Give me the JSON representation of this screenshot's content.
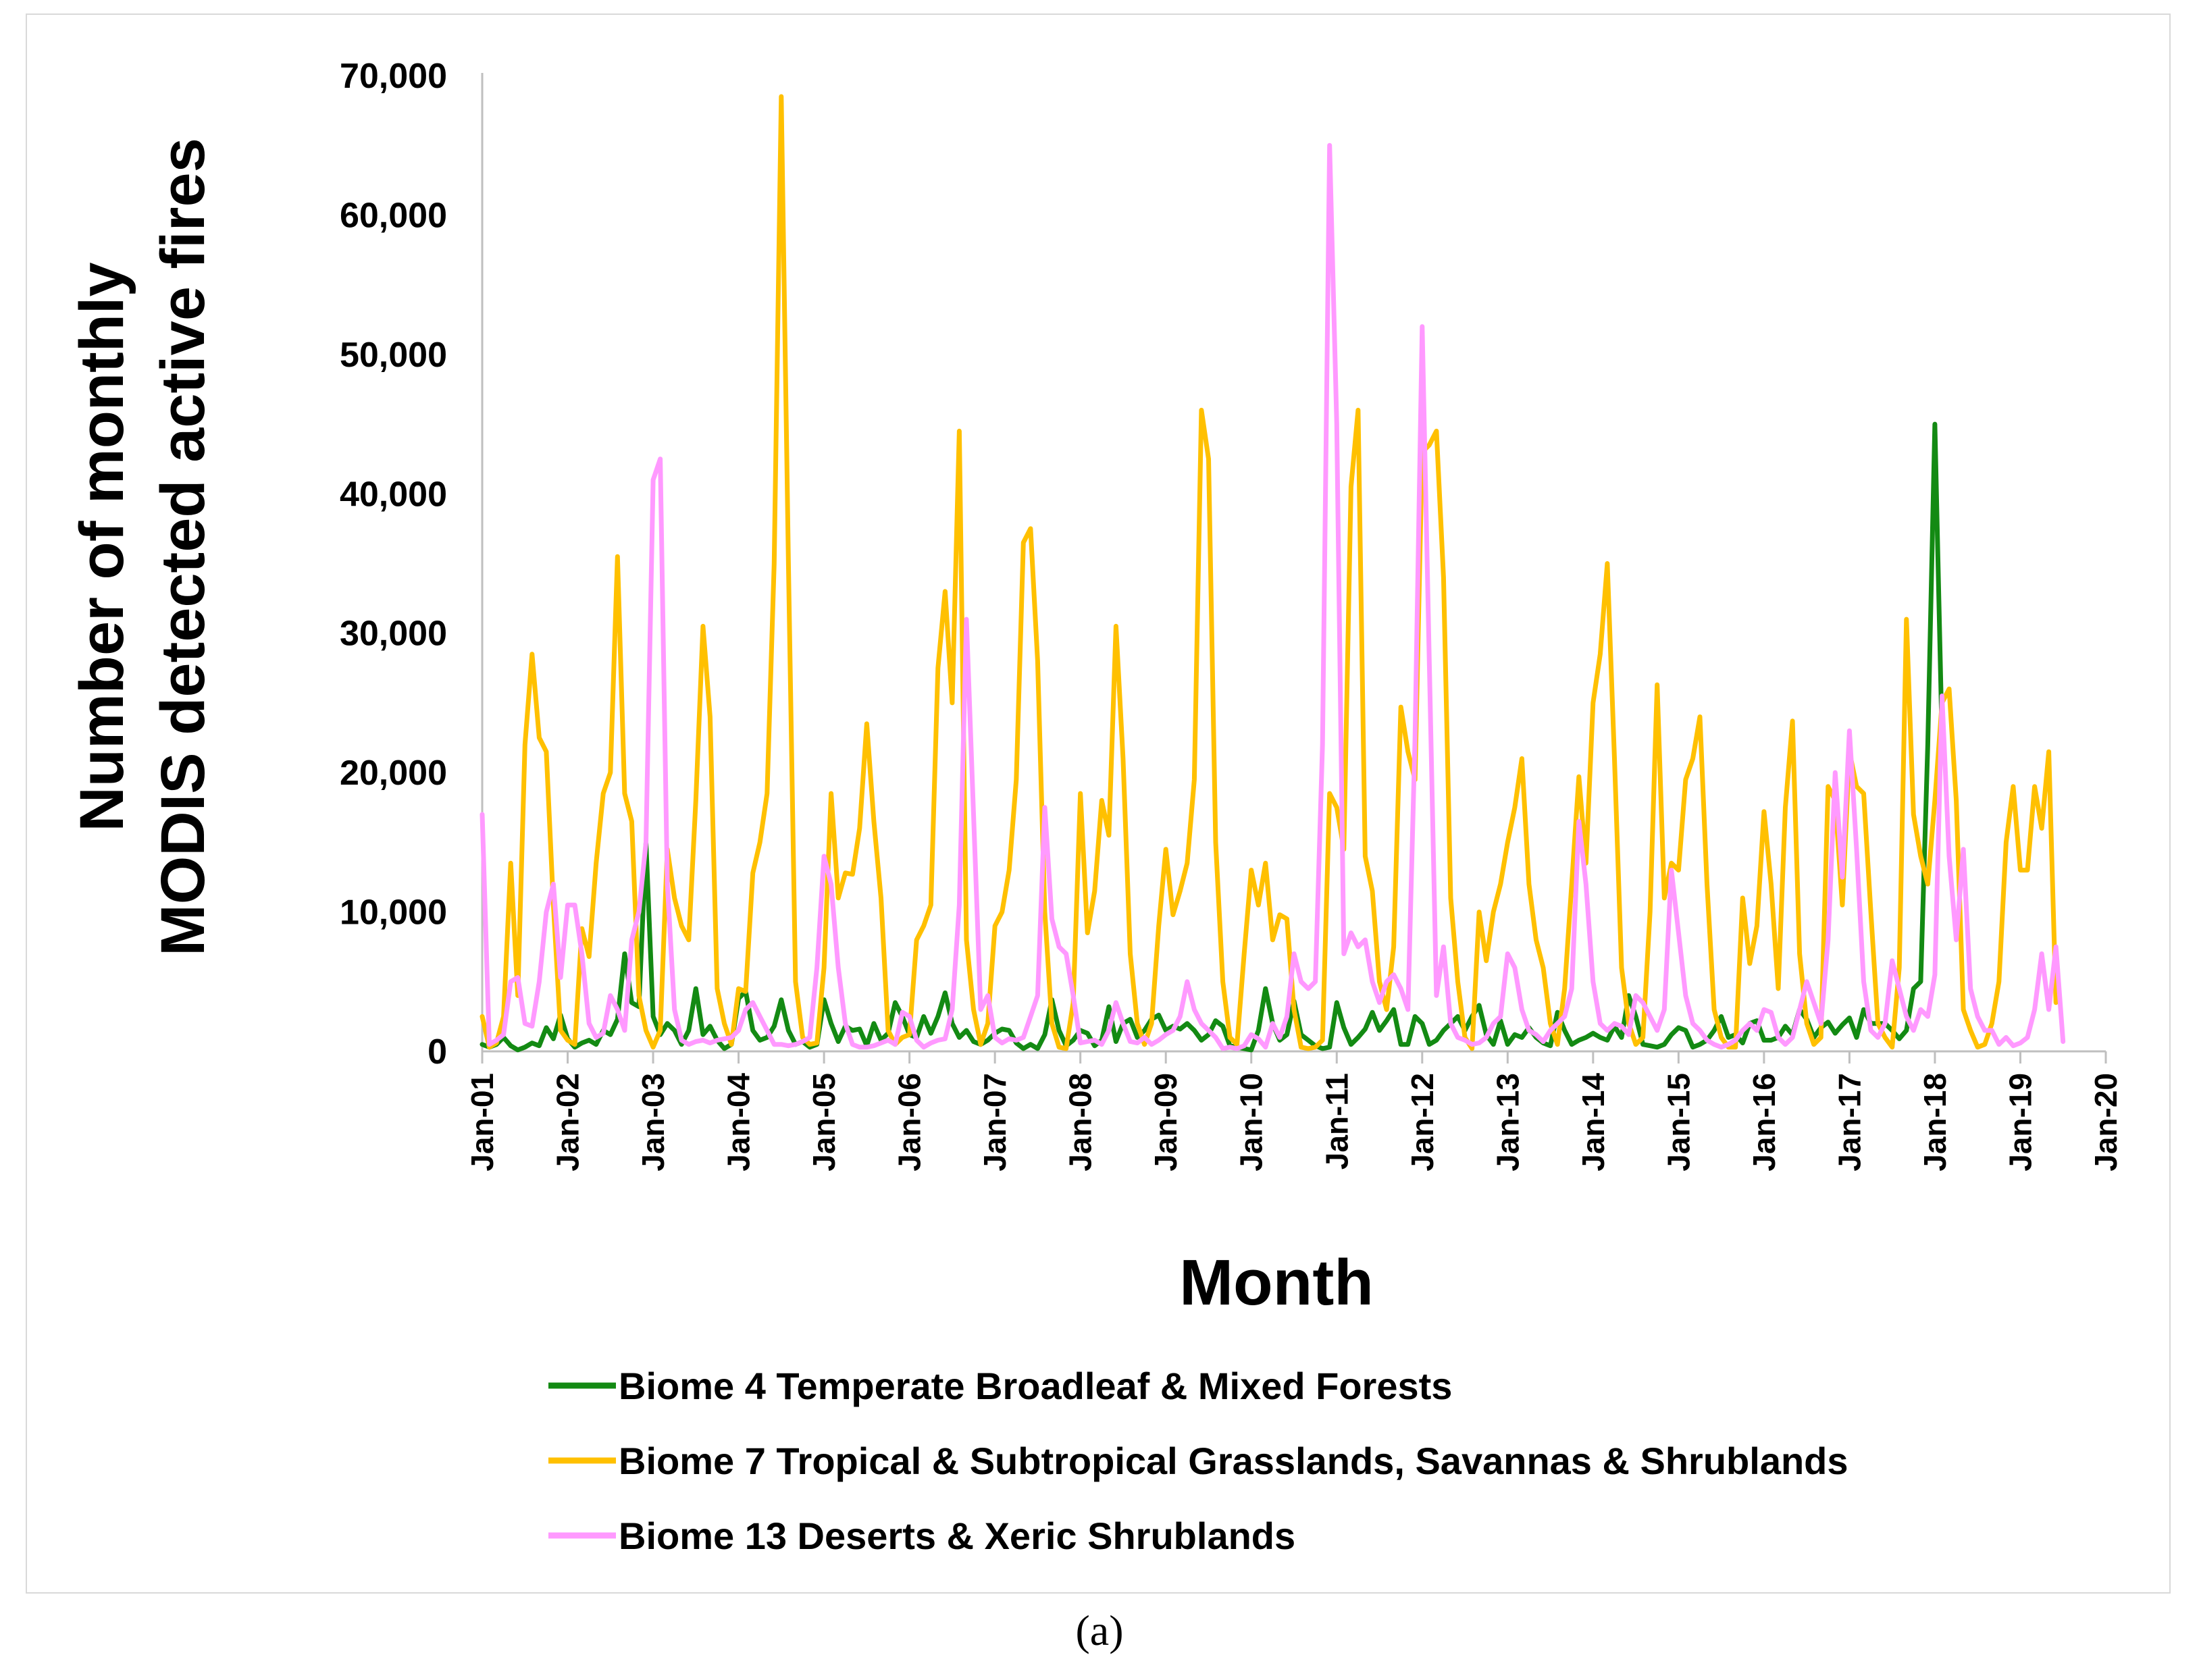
{
  "chart_data": {
    "type": "line",
    "title": "",
    "xlabel": "Month",
    "ylabel_line1": "Number of monthly",
    "ylabel_line2": "MODIS detected active fires",
    "ylim": [
      0,
      70000
    ],
    "yticks": [
      0,
      10000,
      20000,
      30000,
      40000,
      50000,
      60000,
      70000
    ],
    "ytick_labels": [
      "0",
      "10,000",
      "20,000",
      "30,000",
      "40,000",
      "50,000",
      "60,000",
      "70,000"
    ],
    "xticks": [
      "Jan-01",
      "Jan-02",
      "Jan-03",
      "Jan-04",
      "Jan-05",
      "Jan-06",
      "Jan-07",
      "Jan-08",
      "Jan-09",
      "Jan-10",
      "Jan-11",
      "Jan-12",
      "Jan-13",
      "Jan-14",
      "Jan-15",
      "Jan-16",
      "Jan-17",
      "Jan-18",
      "Jan-19",
      "Jan-20"
    ],
    "x_start": "Jan-01",
    "x_end": "Jan-20",
    "legend_position": "bottom",
    "grid": false,
    "series": [
      {
        "name": "Biome 4 Temperate Broadleaf & Mixed Forests",
        "color": "#138a13",
        "values": [
          500,
          300,
          500,
          1000,
          400,
          100,
          300,
          600,
          400,
          1700,
          900,
          2600,
          900,
          300,
          600,
          800,
          500,
          1500,
          1200,
          2300,
          7000,
          3500,
          3200,
          15000,
          2500,
          1200,
          2000,
          1500,
          500,
          1500,
          4500,
          1200,
          1800,
          800,
          200,
          500,
          3800,
          4300,
          1500,
          800,
          1000,
          1800,
          3700,
          1500,
          500,
          700,
          300,
          500,
          3700,
          2000,
          700,
          1800,
          1500,
          1600,
          400,
          2000,
          800,
          1300,
          3500,
          2500,
          1200,
          1000,
          2500,
          1300,
          2500,
          4200,
          2000,
          1000,
          1500,
          700,
          500,
          800,
          1300,
          1600,
          1500,
          600,
          200,
          500,
          200,
          1200,
          3700,
          1500,
          400,
          800,
          1500,
          1300,
          400,
          800,
          3200,
          700,
          2000,
          2300,
          1000,
          1500,
          2300,
          2600,
          1500,
          1800,
          1600,
          2000,
          1500,
          800,
          1200,
          2200,
          1800,
          400,
          300,
          200,
          100,
          1500,
          4500,
          2000,
          800,
          1200,
          3600,
          1200,
          800,
          400,
          200,
          300,
          3500,
          1700,
          500,
          1000,
          1600,
          2800,
          1500,
          2200,
          3000,
          500,
          500,
          2500,
          2000,
          500,
          800,
          1500,
          2000,
          2500,
          1500,
          2500,
          3300,
          1200,
          500,
          2200,
          500,
          1200,
          1000,
          1700,
          1000,
          600,
          400,
          2800,
          1500,
          500,
          800,
          1000,
          1300,
          1000,
          800,
          1800,
          1000,
          4000,
          2500,
          500,
          400,
          300,
          500,
          1200,
          1700,
          1500,
          300,
          500,
          800,
          1500,
          2500,
          1000,
          1200,
          600,
          2000,
          2200,
          800,
          800,
          1000,
          1800,
          1200,
          3000,
          2300,
          1000,
          1700,
          2100,
          1300,
          1900,
          2400,
          1000,
          3000,
          2000,
          2000,
          2000,
          1500,
          900,
          1500,
          4500,
          5000,
          22000,
          45000,
          22500
        ]
      },
      {
        "name": "Biome 7 Tropical & Subtropical Grasslands, Savannas & Shrublands",
        "color": "#ffc000",
        "values": [
          2500,
          300,
          600,
          2500,
          13500,
          4000,
          22000,
          28500,
          22500,
          21500,
          10500,
          1500,
          800,
          500,
          8800,
          6800,
          13500,
          18500,
          20000,
          35500,
          18500,
          16500,
          4000,
          1500,
          300,
          1500,
          14500,
          11000,
          9000,
          8000,
          18000,
          30500,
          24000,
          4500,
          2000,
          500,
          4500,
          4300,
          12800,
          15000,
          18500,
          35000,
          68500,
          35000,
          5000,
          1000,
          500,
          600,
          6000,
          18500,
          11000,
          12800,
          12700,
          16000,
          23500,
          16500,
          11000,
          1500,
          500,
          1000,
          1200,
          8000,
          9000,
          10500,
          27500,
          33000,
          25000,
          44500,
          8000,
          3000,
          500,
          2000,
          9000,
          10000,
          13000,
          19500,
          36500,
          37500,
          28000,
          10000,
          2000,
          300,
          200,
          3500,
          18500,
          8500,
          11500,
          18000,
          15500,
          30500,
          21000,
          7000,
          2000,
          500,
          2000,
          9000,
          14500,
          9800,
          11500,
          13500,
          19500,
          46000,
          42500,
          15000,
          5000,
          1000,
          500,
          7000,
          13000,
          10500,
          13500,
          8000,
          9800,
          9500,
          3000,
          300,
          200,
          300,
          800,
          18500,
          17500,
          14500,
          40500,
          46000,
          14000,
          11500,
          5000,
          3000,
          7500,
          24700,
          21500,
          19500,
          43000,
          43500,
          44500,
          34000,
          11000,
          5000,
          1000,
          200,
          10000,
          6500,
          10000,
          12000,
          15000,
          17500,
          21000,
          12000,
          8000,
          6000,
          2000,
          500,
          4500,
          12000,
          19700,
          13500,
          25000,
          28500,
          35000,
          21000,
          6000,
          2000,
          500,
          1000,
          10000,
          26300,
          11000,
          13500,
          13000,
          19500,
          21000,
          24000,
          12000,
          3000,
          1000,
          300,
          300,
          11000,
          6300,
          9000,
          17200,
          12000,
          4500,
          17500,
          23700,
          7000,
          2000,
          500,
          1000,
          19000,
          18000,
          10500,
          21500,
          19000,
          18500,
          10000,
          2000,
          1000,
          300,
          6000,
          31000,
          17000,
          14000,
          12000,
          18000,
          25000,
          26000,
          18000,
          3000,
          1500,
          300,
          500,
          2000,
          5000,
          15000,
          19000,
          13000,
          13000,
          19000,
          16000,
          21500,
          3500
        ]
      },
      {
        "name": "Biome 13 Deserts & Xeric Shrublands",
        "color": "#ff99ff",
        "values": [
          17000,
          500,
          800,
          1200,
          5000,
          5300,
          2000,
          1800,
          5000,
          10000,
          12000,
          5300,
          10500,
          10500,
          7000,
          2000,
          1000,
          1300,
          4000,
          3000,
          1500,
          8000,
          10000,
          15000,
          41000,
          42500,
          12000,
          3000,
          800,
          500,
          700,
          800,
          600,
          800,
          900,
          1000,
          1500,
          3000,
          3500,
          2500,
          1500,
          500,
          500,
          400,
          500,
          700,
          1000,
          6000,
          14000,
          12000,
          6000,
          2000,
          500,
          300,
          300,
          400,
          600,
          800,
          500,
          2800,
          2500,
          800,
          300,
          600,
          800,
          900,
          3000,
          10500,
          31000,
          17000,
          3000,
          4000,
          1000,
          600,
          900,
          800,
          1000,
          2500,
          4000,
          17500,
          9500,
          7500,
          7000,
          4000,
          600,
          700,
          800,
          500,
          1500,
          3500,
          2000,
          700,
          600,
          1000,
          500,
          800,
          1200,
          1500,
          2500,
          5000,
          3000,
          2000,
          1500,
          1000,
          200,
          300,
          200,
          400,
          1200,
          900,
          300,
          2000,
          1000,
          2500,
          7000,
          5000,
          4500,
          5000,
          22000,
          65000,
          45000,
          7000,
          8500,
          7500,
          8000,
          5000,
          3500,
          5000,
          5500,
          4500,
          3000,
          22500,
          52000,
          28000,
          4000,
          7500,
          2000,
          1000,
          800,
          500,
          600,
          1000,
          2000,
          2500,
          7000,
          6000,
          3000,
          1500,
          1200,
          700,
          1500,
          2000,
          2500,
          4500,
          16500,
          12000,
          5000,
          2000,
          1500,
          2000,
          1800,
          1200,
          4000,
          3500,
          2500,
          1500,
          3000,
          13000,
          8500,
          4000,
          2000,
          1500,
          800,
          500,
          300,
          500,
          800,
          1500,
          2000,
          1500,
          3000,
          2800,
          1000,
          500,
          1000,
          3000,
          5000,
          3500,
          2000,
          8000,
          20000,
          12500,
          23000,
          14500,
          5000,
          1500,
          1000,
          2000,
          6500,
          4500,
          2500,
          1500,
          3000,
          2500,
          5500,
          25500,
          14000,
          8000,
          14500,
          4500,
          2500,
          1500,
          1500,
          500,
          1000,
          400,
          600,
          1000,
          3000,
          7000,
          3000,
          7500,
          700
        ]
      }
    ]
  },
  "caption": "(a)"
}
